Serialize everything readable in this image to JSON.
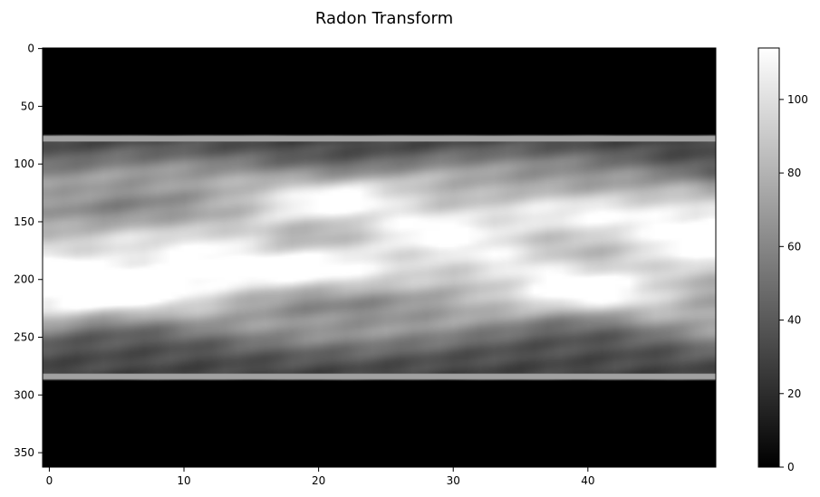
{
  "chart_data": {
    "type": "heatmap",
    "title": "Radon Transform",
    "xlabel": "",
    "ylabel": "",
    "colormap": "gray",
    "x_range": [
      -0.5,
      49.5
    ],
    "y_range": [
      -0.5,
      362.5
    ],
    "y_inverted": true,
    "x_ticks": [
      "0",
      "10",
      "20",
      "30",
      "40"
    ],
    "y_ticks": [
      "0",
      "50",
      "100",
      "150",
      "200",
      "250",
      "300",
      "350"
    ],
    "colorbar": {
      "range": [
        0,
        114
      ],
      "ticks": [
        "0",
        "20",
        "40",
        "60",
        "80",
        "100"
      ]
    },
    "sinogram": {
      "projections": 50,
      "detector_bins": 363,
      "nonzero_rows": [
        75,
        287
      ],
      "edge_rows": [
        78,
        284
      ],
      "edge_value": 72,
      "max_value": 114
    },
    "grid": false,
    "legend": "none"
  }
}
